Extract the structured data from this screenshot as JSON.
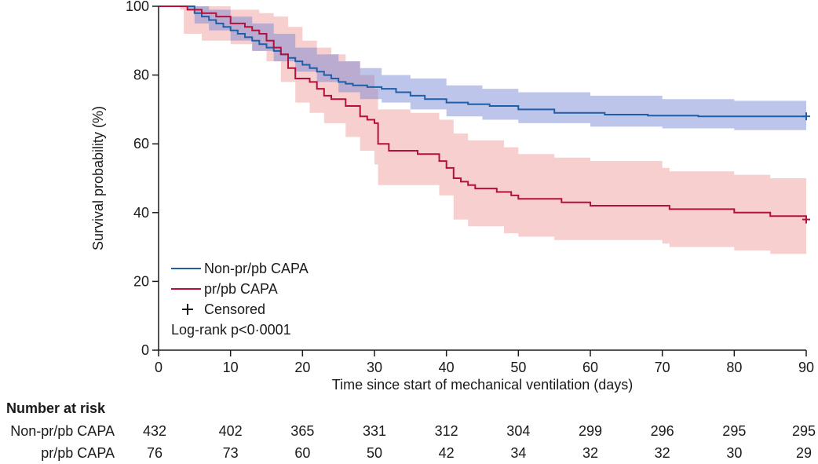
{
  "chart_data": {
    "type": "line",
    "subtype": "kaplan-meier",
    "title": "",
    "xlabel": "Time since start of mechanical ventilation (days)",
    "ylabel": "Survival probability (%)",
    "xlim": [
      0,
      90
    ],
    "ylim": [
      0,
      100
    ],
    "xticks": [
      0,
      10,
      20,
      30,
      40,
      50,
      60,
      70,
      80,
      90
    ],
    "yticks": [
      0,
      20,
      40,
      60,
      80,
      100
    ],
    "grid": false,
    "legend_position": "bottom-left",
    "series": [
      {
        "name": "Non-pr/pb CAPA",
        "color": "#1f5fa8",
        "band_color": "#6f7fd0",
        "points": [
          [
            0,
            100
          ],
          [
            4,
            100
          ],
          [
            5,
            98
          ],
          [
            6,
            97
          ],
          [
            7,
            96
          ],
          [
            8,
            95
          ],
          [
            9,
            94
          ],
          [
            10,
            93
          ],
          [
            11,
            92
          ],
          [
            12,
            91
          ],
          [
            13,
            90
          ],
          [
            14,
            89
          ],
          [
            15,
            88
          ],
          [
            16,
            87
          ],
          [
            17,
            86
          ],
          [
            18,
            85
          ],
          [
            19,
            84
          ],
          [
            20,
            83
          ],
          [
            21,
            82
          ],
          [
            22,
            81
          ],
          [
            23,
            80
          ],
          [
            24,
            79
          ],
          [
            25,
            78
          ],
          [
            26,
            77.5
          ],
          [
            27,
            77
          ],
          [
            29,
            76.5
          ],
          [
            31,
            76
          ],
          [
            33,
            75
          ],
          [
            35,
            74
          ],
          [
            37,
            73
          ],
          [
            40,
            72
          ],
          [
            43,
            71.5
          ],
          [
            46,
            71
          ],
          [
            50,
            70
          ],
          [
            55,
            69
          ],
          [
            62,
            68.5
          ],
          [
            68,
            68.2
          ],
          [
            75,
            68
          ],
          [
            90,
            68
          ]
        ],
        "ci_lower": [
          [
            0,
            100
          ],
          [
            4,
            99
          ],
          [
            5,
            95
          ],
          [
            7,
            93
          ],
          [
            10,
            90
          ],
          [
            13,
            87
          ],
          [
            16,
            84
          ],
          [
            19,
            81
          ],
          [
            22,
            78
          ],
          [
            25,
            75
          ],
          [
            28,
            73
          ],
          [
            31,
            72
          ],
          [
            35,
            70
          ],
          [
            40,
            68
          ],
          [
            45,
            67
          ],
          [
            50,
            66
          ],
          [
            60,
            65
          ],
          [
            70,
            64.5
          ],
          [
            80,
            64
          ],
          [
            90,
            64
          ]
        ],
        "ci_upper": [
          [
            0,
            100
          ],
          [
            4,
            100
          ],
          [
            5,
            100
          ],
          [
            7,
            99
          ],
          [
            10,
            97
          ],
          [
            13,
            95
          ],
          [
            16,
            92
          ],
          [
            19,
            88
          ],
          [
            22,
            86
          ],
          [
            25,
            84
          ],
          [
            28,
            82
          ],
          [
            31,
            80
          ],
          [
            35,
            79
          ],
          [
            40,
            77
          ],
          [
            45,
            76
          ],
          [
            50,
            75
          ],
          [
            60,
            74
          ],
          [
            70,
            73
          ],
          [
            80,
            72.5
          ],
          [
            90,
            72.5
          ]
        ]
      },
      {
        "name": "pr/pb CAPA",
        "color": "#b5103a",
        "band_color": "#f0a8a8",
        "points": [
          [
            0,
            100
          ],
          [
            3,
            100
          ],
          [
            4,
            99
          ],
          [
            5,
            99
          ],
          [
            6,
            98
          ],
          [
            8,
            97
          ],
          [
            10,
            95
          ],
          [
            12,
            94
          ],
          [
            13,
            93
          ],
          [
            14,
            92
          ],
          [
            15,
            90
          ],
          [
            16,
            88
          ],
          [
            17,
            86
          ],
          [
            18,
            82
          ],
          [
            19,
            79
          ],
          [
            21,
            78
          ],
          [
            22,
            76
          ],
          [
            23,
            74
          ],
          [
            24,
            73
          ],
          [
            26,
            71
          ],
          [
            28,
            68
          ],
          [
            29,
            67
          ],
          [
            30,
            66
          ],
          [
            30.5,
            60
          ],
          [
            32,
            58
          ],
          [
            36,
            57
          ],
          [
            39,
            55
          ],
          [
            40,
            53
          ],
          [
            41,
            50
          ],
          [
            42,
            49
          ],
          [
            43,
            48
          ],
          [
            44,
            47
          ],
          [
            47,
            46
          ],
          [
            49,
            45
          ],
          [
            50,
            44
          ],
          [
            52,
            44
          ],
          [
            56,
            43
          ],
          [
            60,
            42
          ],
          [
            65,
            42
          ],
          [
            70,
            42
          ],
          [
            71,
            41
          ],
          [
            76,
            41
          ],
          [
            80,
            40
          ],
          [
            85,
            39
          ],
          [
            90,
            38
          ]
        ],
        "ci_lower": [
          [
            0,
            100
          ],
          [
            3,
            99
          ],
          [
            3.5,
            92
          ],
          [
            6,
            90
          ],
          [
            10,
            89
          ],
          [
            13,
            87
          ],
          [
            15,
            84
          ],
          [
            17,
            78
          ],
          [
            19,
            72
          ],
          [
            21,
            69
          ],
          [
            23,
            66
          ],
          [
            26,
            62
          ],
          [
            28,
            58
          ],
          [
            30,
            54
          ],
          [
            30.5,
            48
          ],
          [
            35,
            48
          ],
          [
            39,
            45
          ],
          [
            41,
            38
          ],
          [
            43,
            36
          ],
          [
            48,
            34
          ],
          [
            50,
            33
          ],
          [
            55,
            32
          ],
          [
            70,
            31
          ],
          [
            71,
            30
          ],
          [
            80,
            29
          ],
          [
            85,
            28
          ],
          [
            90,
            27
          ]
        ],
        "ci_upper": [
          [
            0,
            100
          ],
          [
            3,
            100
          ],
          [
            5,
            100
          ],
          [
            8,
            100
          ],
          [
            10,
            99
          ],
          [
            14,
            98
          ],
          [
            16,
            97
          ],
          [
            18,
            94
          ],
          [
            20,
            90
          ],
          [
            22,
            88
          ],
          [
            24,
            86
          ],
          [
            26,
            84
          ],
          [
            28,
            80
          ],
          [
            30,
            76
          ],
          [
            30.5,
            70
          ],
          [
            35,
            69
          ],
          [
            39,
            67
          ],
          [
            41,
            63
          ],
          [
            43,
            61
          ],
          [
            48,
            59
          ],
          [
            50,
            57
          ],
          [
            55,
            56
          ],
          [
            60,
            55
          ],
          [
            70,
            53
          ],
          [
            71,
            52
          ],
          [
            80,
            51
          ],
          [
            85,
            50
          ],
          [
            90,
            49
          ]
        ]
      }
    ],
    "censored_markers": [
      {
        "series": "Non-pr/pb CAPA",
        "x": 90,
        "y": 68
      },
      {
        "series": "pr/pb CAPA",
        "x": 90,
        "y": 38
      }
    ],
    "legend_entries": [
      "Non-pr/pb CAPA",
      "pr/pb CAPA",
      "Censored"
    ],
    "censored_label": "Censored",
    "annotation": "Log-rank p<0·0001"
  },
  "risk_table": {
    "header": "Number at risk",
    "times": [
      0,
      10,
      20,
      30,
      40,
      50,
      60,
      70,
      80,
      90
    ],
    "rows": [
      {
        "label": "Non-pr/pb CAPA",
        "values": [
          "432",
          "402",
          "365",
          "331",
          "312",
          "304",
          "299",
          "296",
          "295",
          "295"
        ]
      },
      {
        "label": "pr/pb CAPA",
        "values": [
          "76",
          "73",
          "60",
          "50",
          "42",
          "34",
          "32",
          "32",
          "30",
          "29"
        ]
      }
    ]
  }
}
